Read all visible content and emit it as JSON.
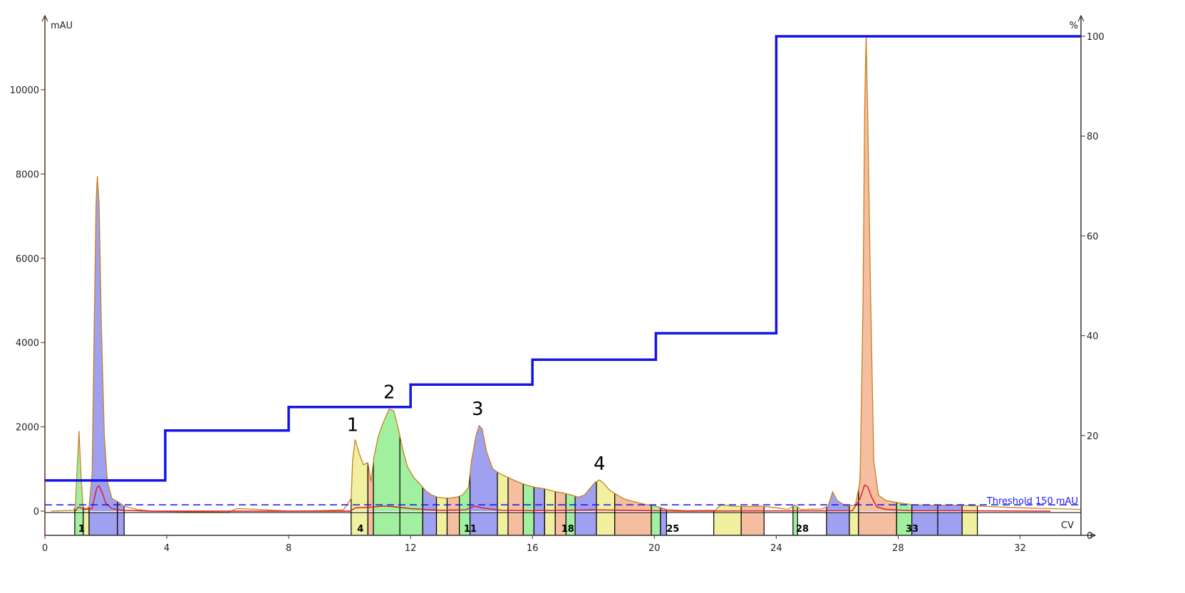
{
  "chart_data": {
    "type": "line",
    "x_axis": {
      "unit": "CV",
      "min": 0,
      "max": 34,
      "ticks": [
        0,
        4,
        8,
        12,
        16,
        20,
        24,
        28,
        32
      ]
    },
    "y_left": {
      "unit": "mAU",
      "min": -500,
      "max": 11700,
      "ticks": [
        0,
        2000,
        4000,
        6000,
        8000,
        10000
      ]
    },
    "y_right": {
      "unit": "%",
      "min": 0,
      "max": 100,
      "ticks": [
        0,
        20,
        40,
        60,
        80,
        100
      ]
    },
    "threshold": {
      "label": "Threshold 150 mAU",
      "value": 150
    },
    "peak_labels": [
      {
        "text": "1",
        "x": 10.1,
        "y": 1800
      },
      {
        "text": "2",
        "x": 11.3,
        "y": 2580
      },
      {
        "text": "3",
        "x": 14.2,
        "y": 2180
      },
      {
        "text": "4",
        "x": 18.2,
        "y": 880
      }
    ],
    "fraction_labels": [
      {
        "text": "1",
        "x": 1.05
      },
      {
        "text": "4",
        "x": 10.2
      },
      {
        "text": "11",
        "x": 13.7
      },
      {
        "text": "18",
        "x": 16.9
      },
      {
        "text": "25",
        "x": 20.35
      },
      {
        "text": "28",
        "x": 24.6
      },
      {
        "text": "33",
        "x": 28.2
      }
    ],
    "colors": {
      "uv_trace": "#c8821e",
      "secondary_trace": "#e0141e",
      "gradient": "#1414e6",
      "threshold": "#1414e6",
      "fraction_fills": [
        "#a0a0f0",
        "#a0f0a0",
        "#f0f0a0",
        "#f5bea0"
      ]
    },
    "gradient_steps": [
      [
        0,
        11
      ],
      [
        3.95,
        11
      ],
      [
        3.95,
        21
      ],
      [
        8,
        21
      ],
      [
        8,
        25.7
      ],
      [
        12,
        25.7
      ],
      [
        12,
        30.2
      ],
      [
        16,
        30.2
      ],
      [
        16,
        35.2
      ],
      [
        20.05,
        35.2
      ],
      [
        20.05,
        40.5
      ],
      [
        24,
        40.5
      ],
      [
        24,
        100
      ],
      [
        34,
        100
      ]
    ],
    "uv_trace": [
      [
        0.2,
        0
      ],
      [
        0.95,
        20
      ],
      [
        1.0,
        120
      ],
      [
        1.05,
        900
      ],
      [
        1.12,
        1900
      ],
      [
        1.18,
        900
      ],
      [
        1.25,
        100
      ],
      [
        1.35,
        50
      ],
      [
        1.45,
        100
      ],
      [
        1.55,
        900
      ],
      [
        1.62,
        4500
      ],
      [
        1.68,
        7300
      ],
      [
        1.72,
        7950
      ],
      [
        1.78,
        7300
      ],
      [
        1.85,
        4500
      ],
      [
        1.95,
        1800
      ],
      [
        2.05,
        700
      ],
      [
        2.2,
        300
      ],
      [
        2.4,
        220
      ],
      [
        2.6,
        120
      ],
      [
        2.8,
        80
      ],
      [
        3.0,
        40
      ],
      [
        3.5,
        0
      ],
      [
        6.0,
        -30
      ],
      [
        6.3,
        60
      ],
      [
        7,
        40
      ],
      [
        8,
        0
      ],
      [
        9,
        10
      ],
      [
        9.8,
        30
      ],
      [
        10.05,
        300
      ],
      [
        10.1,
        1200
      ],
      [
        10.18,
        1700
      ],
      [
        10.3,
        1400
      ],
      [
        10.45,
        1100
      ],
      [
        10.6,
        1150
      ],
      [
        10.7,
        700
      ],
      [
        10.8,
        1300
      ],
      [
        10.95,
        1800
      ],
      [
        11.1,
        2100
      ],
      [
        11.3,
        2420
      ],
      [
        11.45,
        2380
      ],
      [
        11.6,
        1950
      ],
      [
        11.75,
        1450
      ],
      [
        11.9,
        1050
      ],
      [
        12.1,
        800
      ],
      [
        12.3,
        650
      ],
      [
        12.5,
        480
      ],
      [
        12.7,
        380
      ],
      [
        12.9,
        330
      ],
      [
        13.1,
        310
      ],
      [
        13.3,
        310
      ],
      [
        13.5,
        330
      ],
      [
        13.7,
        380
      ],
      [
        13.9,
        560
      ],
      [
        14.0,
        1200
      ],
      [
        14.15,
        1800
      ],
      [
        14.25,
        2030
      ],
      [
        14.35,
        1950
      ],
      [
        14.5,
        1400
      ],
      [
        14.7,
        1000
      ],
      [
        14.9,
        900
      ],
      [
        15.2,
        800
      ],
      [
        15.5,
        700
      ],
      [
        15.8,
        620
      ],
      [
        16.1,
        560
      ],
      [
        16.4,
        530
      ],
      [
        16.7,
        470
      ],
      [
        17.0,
        430
      ],
      [
        17.3,
        380
      ],
      [
        17.5,
        330
      ],
      [
        17.7,
        380
      ],
      [
        17.9,
        550
      ],
      [
        18.05,
        680
      ],
      [
        18.2,
        740
      ],
      [
        18.35,
        650
      ],
      [
        18.5,
        520
      ],
      [
        18.7,
        420
      ],
      [
        19.0,
        290
      ],
      [
        19.3,
        230
      ],
      [
        19.7,
        160
      ],
      [
        20.0,
        130
      ],
      [
        20.4,
        40
      ],
      [
        21,
        10
      ],
      [
        22,
        20
      ],
      [
        22.2,
        160
      ],
      [
        22.5,
        120
      ],
      [
        23,
        110
      ],
      [
        23.5,
        120
      ],
      [
        24,
        80
      ],
      [
        24.4,
        40
      ],
      [
        24.6,
        150
      ],
      [
        24.8,
        40
      ],
      [
        25.5,
        50
      ],
      [
        25.7,
        120
      ],
      [
        25.85,
        460
      ],
      [
        26.0,
        250
      ],
      [
        26.3,
        120
      ],
      [
        26.6,
        150
      ],
      [
        26.75,
        700
      ],
      [
        26.85,
        5000
      ],
      [
        26.9,
        9500
      ],
      [
        26.95,
        11300
      ],
      [
        27.0,
        9500
      ],
      [
        27.1,
        5000
      ],
      [
        27.2,
        1200
      ],
      [
        27.35,
        380
      ],
      [
        27.6,
        250
      ],
      [
        28.0,
        200
      ],
      [
        28.5,
        150
      ],
      [
        29.0,
        140
      ],
      [
        30,
        140
      ],
      [
        31,
        110
      ],
      [
        32,
        80
      ],
      [
        33,
        60
      ],
      [
        34,
        40
      ]
    ],
    "secondary_trace": [
      [
        1.0,
        0
      ],
      [
        1.1,
        100
      ],
      [
        1.3,
        40
      ],
      [
        1.55,
        60
      ],
      [
        1.7,
        550
      ],
      [
        1.78,
        600
      ],
      [
        1.9,
        400
      ],
      [
        2.0,
        180
      ],
      [
        2.2,
        60
      ],
      [
        2.5,
        20
      ],
      [
        3.5,
        0
      ],
      [
        10.0,
        0
      ],
      [
        10.2,
        80
      ],
      [
        10.6,
        90
      ],
      [
        11.1,
        120
      ],
      [
        11.4,
        110
      ],
      [
        12.0,
        60
      ],
      [
        13.0,
        20
      ],
      [
        13.8,
        30
      ],
      [
        14.1,
        120
      ],
      [
        14.4,
        70
      ],
      [
        15,
        20
      ],
      [
        16,
        10
      ],
      [
        18,
        30
      ],
      [
        20,
        10
      ],
      [
        21,
        0
      ],
      [
        26.5,
        10
      ],
      [
        26.75,
        300
      ],
      [
        26.9,
        620
      ],
      [
        27.0,
        580
      ],
      [
        27.15,
        300
      ],
      [
        27.3,
        100
      ],
      [
        27.6,
        40
      ],
      [
        28.5,
        10
      ],
      [
        30,
        10
      ],
      [
        33,
        0
      ]
    ],
    "fractions": [
      {
        "x0": 0.98,
        "x1": 1.26,
        "color": 1,
        "top": 1900
      },
      {
        "x0": 1.26,
        "x1": 1.45,
        "color": 2,
        "top": 100
      },
      {
        "x0": 1.45,
        "x1": 2.38,
        "color": 0,
        "top": 7950
      },
      {
        "x0": 2.38,
        "x1": 2.6,
        "color": 0,
        "top": 220
      },
      {
        "x0": 10.05,
        "x1": 10.6,
        "color": 2,
        "top": 1700
      },
      {
        "x0": 10.6,
        "x1": 10.78,
        "color": 3,
        "top": 1150
      },
      {
        "x0": 10.78,
        "x1": 11.65,
        "color": 1,
        "top": 2420
      },
      {
        "x0": 11.65,
        "x1": 12.4,
        "color": 1,
        "top": 1450
      },
      {
        "x0": 12.4,
        "x1": 12.85,
        "color": 0,
        "top": 650
      },
      {
        "x0": 12.85,
        "x1": 13.2,
        "color": 2,
        "top": 380
      },
      {
        "x0": 13.2,
        "x1": 13.6,
        "color": 3,
        "top": 320
      },
      {
        "x0": 13.6,
        "x1": 13.95,
        "color": 1,
        "top": 380
      },
      {
        "x0": 13.95,
        "x1": 14.85,
        "color": 0,
        "top": 2030
      },
      {
        "x0": 14.85,
        "x1": 15.2,
        "color": 2,
        "top": 900
      },
      {
        "x0": 15.2,
        "x1": 15.7,
        "color": 3,
        "top": 800
      },
      {
        "x0": 15.7,
        "x1": 16.05,
        "color": 1,
        "top": 640
      },
      {
        "x0": 16.05,
        "x1": 16.4,
        "color": 0,
        "top": 560
      },
      {
        "x0": 16.4,
        "x1": 16.75,
        "color": 2,
        "top": 530
      },
      {
        "x0": 16.75,
        "x1": 17.1,
        "color": 3,
        "top": 470
      },
      {
        "x0": 17.1,
        "x1": 17.4,
        "color": 1,
        "top": 430
      },
      {
        "x0": 17.4,
        "x1": 18.1,
        "color": 0,
        "top": 680
      },
      {
        "x0": 18.1,
        "x1": 18.7,
        "color": 2,
        "top": 740
      },
      {
        "x0": 18.7,
        "x1": 19.9,
        "color": 3,
        "top": 420
      },
      {
        "x0": 19.9,
        "x1": 20.2,
        "color": 1,
        "top": 130
      },
      {
        "x0": 20.2,
        "x1": 20.4,
        "color": 0,
        "top": 100
      },
      {
        "x0": 21.95,
        "x1": 22.85,
        "color": 2,
        "top": 160
      },
      {
        "x0": 22.85,
        "x1": 23.6,
        "color": 3,
        "top": 120
      },
      {
        "x0": 24.55,
        "x1": 24.7,
        "color": 1,
        "top": 150
      },
      {
        "x0": 25.65,
        "x1": 26.4,
        "color": 0,
        "top": 460
      },
      {
        "x0": 26.4,
        "x1": 26.7,
        "color": 2,
        "top": 150
      },
      {
        "x0": 26.7,
        "x1": 27.95,
        "color": 3,
        "top": 11300
      },
      {
        "x0": 27.95,
        "x1": 28.45,
        "color": 1,
        "top": 200
      },
      {
        "x0": 28.45,
        "x1": 29.3,
        "color": 0,
        "top": 150
      },
      {
        "x0": 29.3,
        "x1": 30.1,
        "color": 0,
        "top": 140
      },
      {
        "x0": 30.1,
        "x1": 30.6,
        "color": 2,
        "top": 140
      }
    ]
  }
}
